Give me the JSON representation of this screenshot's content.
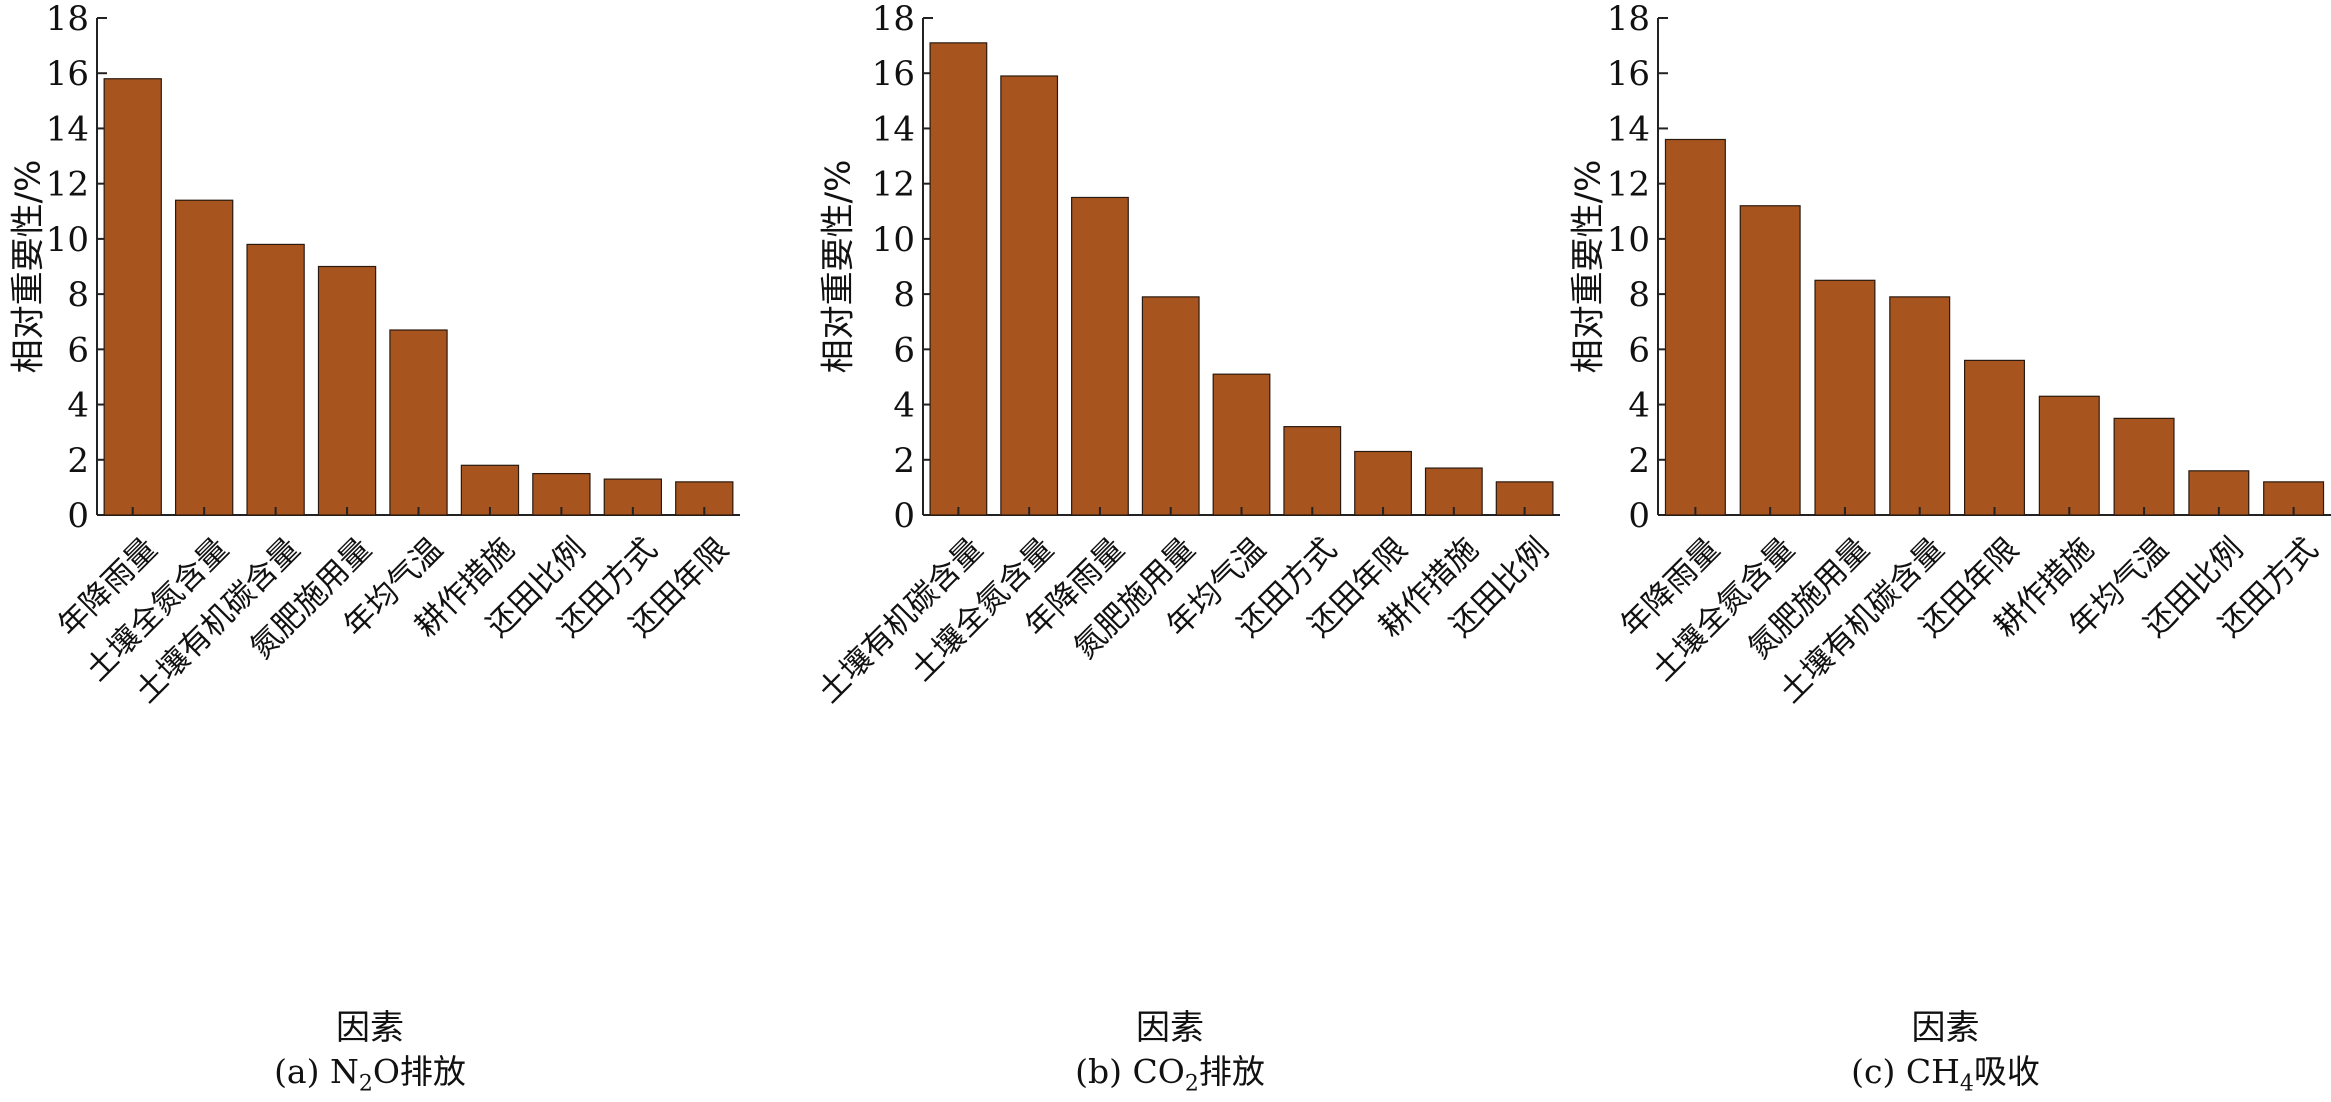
{
  "chart_data": [
    {
      "type": "bar",
      "caption_prefix": "(a) N",
      "caption_sub": "2",
      "caption_suffix": "O排放",
      "ylabel": "相对重要性/%",
      "xlabel": "因素",
      "ylim": [
        0,
        18
      ],
      "yticks": [
        0,
        2,
        4,
        6,
        8,
        10,
        12,
        14,
        16,
        18
      ],
      "categories": [
        "年降雨量",
        "土壤全氮含量",
        "土壤有机碳含量",
        "氮肥施用量",
        "年均气温",
        "耕作措施",
        "还田比例",
        "还田方式",
        "还田年限"
      ],
      "values": [
        15.8,
        11.4,
        9.8,
        9.0,
        6.7,
        1.8,
        1.5,
        1.3,
        1.2
      ],
      "bar_color": "#A8541F"
    },
    {
      "type": "bar",
      "caption_prefix": "(b) CO",
      "caption_sub": "2",
      "caption_suffix": "排放",
      "ylabel": "相对重要性/%",
      "xlabel": "因素",
      "ylim": [
        0,
        18
      ],
      "yticks": [
        0,
        2,
        4,
        6,
        8,
        10,
        12,
        14,
        16,
        18
      ],
      "categories": [
        "土壤有机碳含量",
        "土壤全氮含量",
        "年降雨量",
        "氮肥施用量",
        "年均气温",
        "还田方式",
        "还田年限",
        "耕作措施",
        "还田比例"
      ],
      "values": [
        17.1,
        15.9,
        11.5,
        7.9,
        5.1,
        3.2,
        2.3,
        1.7,
        1.2
      ],
      "bar_color": "#A8541F"
    },
    {
      "type": "bar",
      "caption_prefix": "(c) CH",
      "caption_sub": "4",
      "caption_suffix": "吸收",
      "ylabel": "相对重要性/%",
      "xlabel": "因素",
      "ylim": [
        0,
        18
      ],
      "yticks": [
        0,
        2,
        4,
        6,
        8,
        10,
        12,
        14,
        16,
        18
      ],
      "categories": [
        "年降雨量",
        "土壤全氮含量",
        "氮肥施用量",
        "土壤有机碳含量",
        "还田年限",
        "耕作措施",
        "年均气温",
        "还田比例",
        "还田方式"
      ],
      "values": [
        13.6,
        11.2,
        8.5,
        7.9,
        5.6,
        4.3,
        3.5,
        1.6,
        1.2
      ],
      "bar_color": "#A8541F"
    }
  ]
}
